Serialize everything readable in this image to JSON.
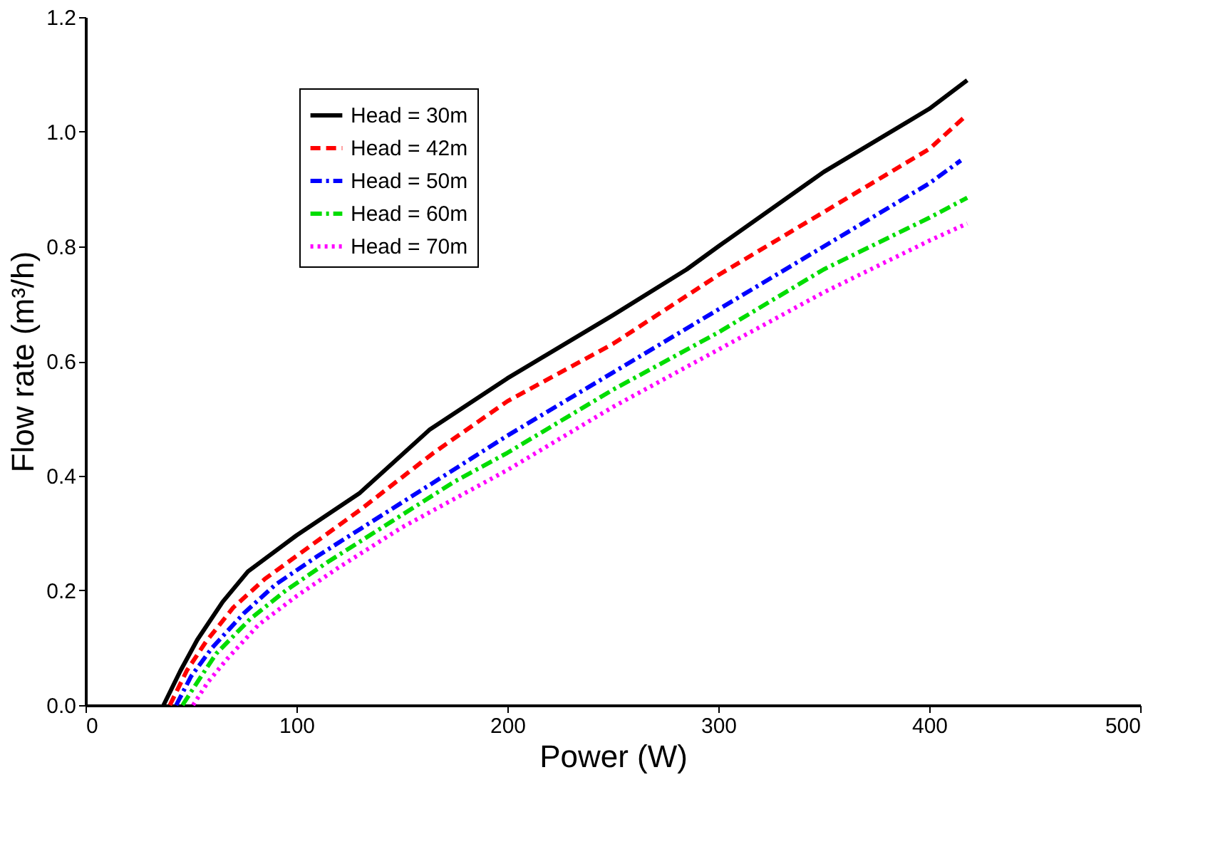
{
  "chart_data": {
    "type": "line",
    "xlabel": "Power (W)",
    "ylabel": "Flow rate (m³/h)",
    "xlim": [
      0,
      500
    ],
    "xticks": [
      0,
      100,
      200,
      300,
      400,
      500
    ],
    "ylim": [
      0,
      1.2
    ],
    "yticks": [
      {
        "value": 0,
        "label": "0.0"
      },
      {
        "value": 0.2,
        "label": "0.2"
      },
      {
        "value": 0.4,
        "label": "0.4"
      },
      {
        "value": 0.6,
        "label": "0.6"
      },
      {
        "value": 0.8,
        "label": "0.8"
      },
      {
        "value": 1,
        "label": "1.0"
      },
      {
        "value": 1.2,
        "label": "1.2"
      }
    ],
    "grid": false,
    "legend": "top left",
    "marker": "none",
    "series": [
      {
        "name": "Head = 30m",
        "color": "#000000",
        "line_style": "solid",
        "x": [
          37,
          45,
          53,
          65,
          77,
          100,
          130,
          163,
          200,
          250,
          285,
          300,
          350,
          400,
          418
        ],
        "values": [
          0,
          0.06,
          0.114,
          0.18,
          0.233,
          0.296,
          0.37,
          0.48,
          0.57,
          0.68,
          0.76,
          0.8,
          0.93,
          1.04,
          1.09
        ]
      },
      {
        "name": "Head = 42m",
        "color": "#ff0000",
        "line_style": "dashed",
        "x": [
          40,
          48,
          57,
          70,
          85,
          100,
          130,
          165,
          200,
          250,
          300,
          350,
          400,
          418
        ],
        "values": [
          0,
          0.06,
          0.11,
          0.17,
          0.22,
          0.26,
          0.34,
          0.44,
          0.53,
          0.63,
          0.75,
          0.86,
          0.97,
          1.03
        ]
      },
      {
        "name": "Head = 50m",
        "color": "#0000ff",
        "line_style": "dashdot",
        "x": [
          43,
          50,
          60,
          75,
          90,
          110,
          140,
          170,
          200,
          250,
          300,
          350,
          400,
          415
        ],
        "values": [
          0,
          0.05,
          0.1,
          0.16,
          0.21,
          0.26,
          0.33,
          0.4,
          0.47,
          0.58,
          0.69,
          0.8,
          0.91,
          0.95
        ]
      },
      {
        "name": "Head = 60m",
        "color": "#00dd00",
        "line_style": "dashdot",
        "x": [
          46,
          53,
          62,
          78,
          95,
          115,
          145,
          175,
          200,
          250,
          300,
          350,
          400,
          418
        ],
        "values": [
          0,
          0.04,
          0.09,
          0.15,
          0.2,
          0.25,
          0.32,
          0.39,
          0.44,
          0.55,
          0.65,
          0.76,
          0.85,
          0.885
        ]
      },
      {
        "name": "Head = 70m",
        "color": "#ff00ff",
        "line_style": "dotted",
        "x": [
          51,
          58,
          67,
          82,
          100,
          120,
          150,
          180,
          200,
          250,
          300,
          350,
          400,
          418
        ],
        "values": [
          0,
          0.04,
          0.08,
          0.14,
          0.19,
          0.24,
          0.31,
          0.37,
          0.41,
          0.52,
          0.62,
          0.72,
          0.81,
          0.84
        ]
      }
    ]
  }
}
